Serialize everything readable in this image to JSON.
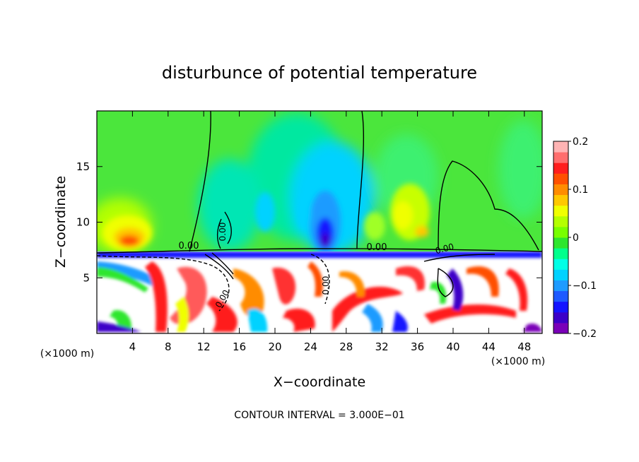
{
  "chart_data": {
    "type": "heatmap",
    "title": "disturbunce of potential temperature",
    "xlabel": "X−coordinate",
    "ylabel": "Z−coordinate",
    "x_unit": "(×1000 m)",
    "x_unit_right": "(×1000 m)",
    "xlim": [
      0,
      50
    ],
    "ylim": [
      0,
      20
    ],
    "x_ticks": [
      4,
      8,
      12,
      16,
      20,
      24,
      28,
      32,
      36,
      40,
      44,
      48
    ],
    "x_tick_labels": [
      "4",
      "8",
      "12",
      "16",
      "20",
      "24",
      "28",
      "32",
      "36",
      "40",
      "44",
      "48"
    ],
    "y_ticks": [
      5,
      10,
      15
    ],
    "y_tick_labels": [
      "5",
      "10",
      "15"
    ],
    "colorbar": {
      "range": [
        -0.2,
        0.2
      ],
      "tick_values": [
        0.2,
        0.1,
        0,
        -0.1,
        -0.2
      ],
      "tick_labels": [
        "0.2",
        "0.1",
        "0",
        "−0.1",
        "−0.2"
      ],
      "colors": [
        "#7a00b8",
        "#3c00c8",
        "#1414ff",
        "#1e5aff",
        "#1e9bff",
        "#00d2ff",
        "#00ffe6",
        "#00ff8c",
        "#2ee62e",
        "#78ff00",
        "#b4ff00",
        "#f0ff00",
        "#ffc800",
        "#ff8c00",
        "#ff5000",
        "#ff1e1e",
        "#ff6e6e",
        "#ffb4b4"
      ]
    },
    "contour_labels": [
      "0.00",
      "0.00",
      "0.00",
      "0.00",
      "0.00",
      "0.00"
    ],
    "contour_interval": "CONTOUR INTERVAL = 3.000E−01"
  }
}
